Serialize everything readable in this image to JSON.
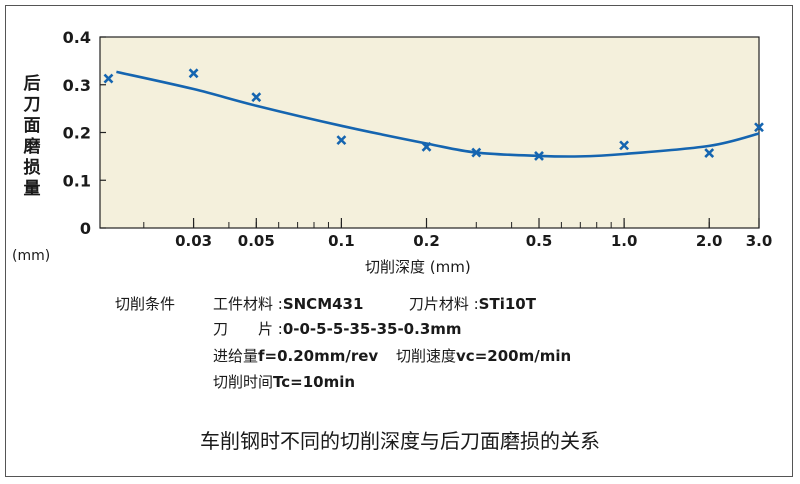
{
  "chart_data": {
    "type": "scatter",
    "title": "",
    "xlabel": "切削深度 (mm)",
    "ylabel": "后刀面磨损量",
    "ylabel_unit": "(mm)",
    "x_scale": "log",
    "xlim": [
      0.014,
      3.0
    ],
    "ylim": [
      0,
      0.4
    ],
    "grid": false,
    "background": "#f4f0dc",
    "x_ticks": [
      0.03,
      0.05,
      0.1,
      0.2,
      0.5,
      1.0,
      2.0,
      3.0
    ],
    "x_tick_labels": [
      "0.03",
      "0.05",
      "0.1",
      "0.2",
      "0.5",
      "1.0",
      "2.0",
      "3.0"
    ],
    "y_ticks": [
      0,
      0.1,
      0.2,
      0.3,
      0.4
    ],
    "y_tick_labels": [
      "0",
      "0.1",
      "0.2",
      "0.3",
      "0.4"
    ],
    "series": [
      {
        "type": "scatter",
        "marker": "x",
        "color": "#1565b0",
        "x": [
          0.015,
          0.03,
          0.05,
          0.1,
          0.2,
          0.3,
          0.5,
          1.0,
          2.0,
          3.0
        ],
        "y": [
          0.313,
          0.324,
          0.274,
          0.184,
          0.17,
          0.158,
          0.151,
          0.173,
          0.157,
          0.211
        ]
      },
      {
        "type": "line",
        "color": "#1565b0",
        "x": [
          0.016,
          0.03,
          0.05,
          0.1,
          0.2,
          0.3,
          0.5,
          0.7,
          1.0,
          2.0,
          3.0
        ],
        "y": [
          0.327,
          0.291,
          0.256,
          0.214,
          0.177,
          0.158,
          0.151,
          0.15,
          0.155,
          0.172,
          0.198
        ]
      }
    ]
  },
  "conditions": {
    "heading": "切削条件",
    "rows": [
      [
        {
          "key": "工件材料 : ",
          "value": "SNCM431"
        },
        {
          "key": "刀片材料 : ",
          "value": "STi10T"
        }
      ],
      [
        {
          "key": "刀　　片 : ",
          "value": "0-0-5-5-35-35-0.3mm"
        }
      ],
      [
        {
          "key": "进给量 ",
          "value": "f=0.20mm/rev"
        },
        {
          "key": "切削速度 ",
          "value": "vc=200m/min"
        }
      ],
      [
        {
          "key": "切削时间 ",
          "value": "Tc=10min"
        }
      ]
    ]
  },
  "caption": "车削钢时不同的切削深度与后刀面磨损的关系"
}
